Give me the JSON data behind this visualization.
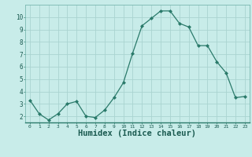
{
  "x": [
    0,
    1,
    2,
    3,
    4,
    5,
    6,
    7,
    8,
    9,
    10,
    11,
    12,
    13,
    14,
    15,
    16,
    17,
    18,
    19,
    20,
    21,
    22,
    23
  ],
  "y": [
    3.3,
    2.2,
    1.7,
    2.2,
    3.0,
    3.2,
    2.0,
    1.9,
    2.5,
    3.5,
    4.7,
    7.1,
    9.3,
    9.9,
    10.5,
    10.5,
    9.5,
    9.2,
    7.7,
    7.7,
    6.4,
    5.5,
    3.5,
    3.6
  ],
  "line_color": "#2a7a6a",
  "marker": "D",
  "marker_size": 2.0,
  "bg_color": "#c8ece9",
  "grid_color": "#aad4d0",
  "xlabel": "Humidex (Indice chaleur)",
  "xlabel_fontsize": 7.5,
  "ytick_labels": [
    "2",
    "3",
    "4",
    "5",
    "6",
    "7",
    "8",
    "9",
    "10"
  ],
  "ytick_vals": [
    2,
    3,
    4,
    5,
    6,
    7,
    8,
    9,
    10
  ],
  "xlim": [
    -0.5,
    23.5
  ],
  "ylim": [
    1.5,
    11.0
  ]
}
